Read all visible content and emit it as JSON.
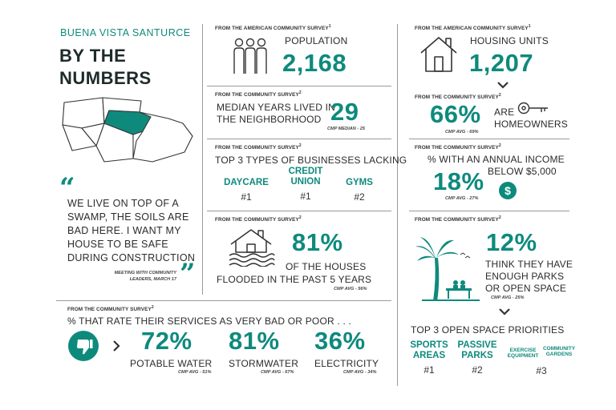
{
  "header": {
    "subtitle": "BUENA VISTA SANTURCE",
    "title_line1": "BY THE",
    "title_line2": "NUMBERS"
  },
  "quote": {
    "text_line1": "WE LIVE ON TOP OF A",
    "text_line2a": "SWAMP,",
    "text_line2b": " THE SOILS ARE",
    "text_line3": "BAD HERE. I WANT MY",
    "text_line4": "HOUSE TO BE SAFE",
    "text_line5": "DURING CONSTRUCTION",
    "attribution_line1": "MEETING WITH COMMUNITY",
    "attribution_line2": "LEADERS, MARCH 17"
  },
  "population": {
    "source": "FROM THE AMERICAN COMMUNITY SURVEY",
    "source_sup": "1",
    "label": "POPULATION",
    "value": "2,168"
  },
  "median_years": {
    "source": "FROM THE COMMUNITY SURVEY",
    "source_sup": "2",
    "label_line1": "MEDIAN YEARS LIVED IN",
    "label_line2": "THE NEIGHBORHOOD",
    "value": "29",
    "note": "CMP MEDIAN - 25"
  },
  "businesses": {
    "source": "FROM THE COMMUNITY SURVEY",
    "source_sup": "2",
    "label": "TOP 3 TYPES OF BUSINESSES LACKING",
    "items": [
      {
        "name_line1": "DAYCARE",
        "name_line2": "",
        "rank": "#1"
      },
      {
        "name_line1": "CREDIT",
        "name_line2": "UNION",
        "rank": "#1"
      },
      {
        "name_line1": "GYMS",
        "name_line2": "",
        "rank": "#2"
      }
    ]
  },
  "flooded": {
    "source": "FROM THE COMMUNITY SURVEY",
    "source_sup": "2",
    "value": "81%",
    "label_line1": "OF THE HOUSES",
    "label_line2": "FLOODED IN THE PAST 5 YEARS",
    "note": "CMP AVG - 56%"
  },
  "services": {
    "source": "FROM THE COMMUNITY SURVEY",
    "source_sup": "2",
    "label": "% THAT RATE THEIR SERVICES AS VERY BAD OR POOR . . .",
    "items": [
      {
        "value": "72%",
        "name": "POTABLE WATER",
        "note": "CMP AVG - 51%"
      },
      {
        "value": "81%",
        "name": "STORMWATER",
        "note": "CMP AVG - 67%"
      },
      {
        "value": "36%",
        "name": "ELECTRICITY",
        "note": "CMP AVG - 34%"
      }
    ]
  },
  "housing": {
    "source": "FROM THE AMERICAN COMMUNITY SURVEY",
    "source_sup": "1",
    "label": "HOUSING UNITS",
    "value": "1,207"
  },
  "homeowners": {
    "source": "FROM THE COMMUNITY SURVEY",
    "source_sup": "2",
    "value": "66%",
    "label_line1": "ARE",
    "label_line2": "HOMEOWNERS",
    "note": "CMP AVG - 69%"
  },
  "income": {
    "source": "FROM THE COMMUNITY SURVEY",
    "source_sup": "2",
    "label_line1": "% WITH AN ANNUAL INCOME",
    "label_line2": "BELOW $5,000",
    "value": "18%",
    "note": "CMP AVG - 27%"
  },
  "parks": {
    "source": "FROM THE COMMUNITY SURVEY",
    "source_sup": "2",
    "value": "12%",
    "label_line1": "THINK THEY HAVE",
    "label_line2": "ENOUGH PARKS",
    "label_line3": "OR OPEN SPACE",
    "note": "CMP AVG - 25%"
  },
  "open_space": {
    "label": "TOP 3 OPEN SPACE PRIORITIES",
    "items": [
      {
        "name_line1": "SPORTS",
        "name_line2": "AREAS",
        "rank": "#1"
      },
      {
        "name_line1": "PASSIVE",
        "name_line2": "PARKS",
        "rank": "#2"
      },
      {
        "name_line1": "EXERCISE",
        "name_line2": "EQUIPMENT",
        "rank": "#3"
      },
      {
        "name_line1": "COMMUNITY",
        "name_line2": "GARDENS",
        "rank": ""
      }
    ]
  },
  "colors": {
    "accent": "#0e8a7d",
    "highlight": "#f1ecae",
    "rule": "#9a9a9a"
  },
  "icons": [
    "people-icon",
    "house-outline-icon",
    "flood-house-icon",
    "thumbs-down-icon",
    "key-icon",
    "dollar-coin-icon",
    "palm-tree-bench-icon",
    "neighborhood-map",
    "quote-open-icon",
    "quote-close-icon",
    "chevron-down-icon",
    "chevron-right-icon"
  ]
}
